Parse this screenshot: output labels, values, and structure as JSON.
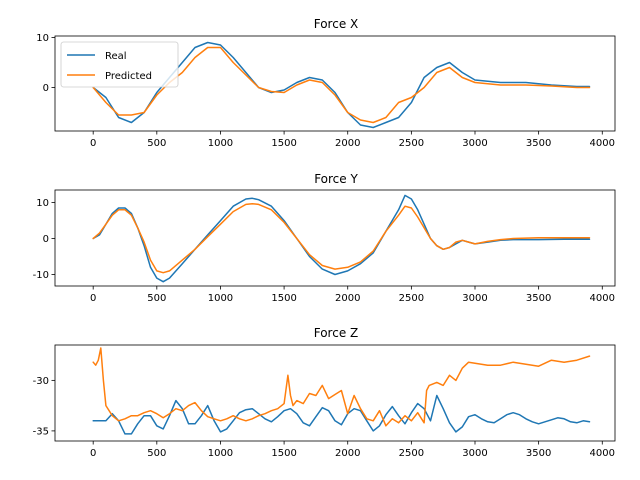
{
  "colors": {
    "real": "#1f77b4",
    "predicted": "#ff7f0e"
  },
  "chart_data": [
    {
      "type": "line",
      "title": "Force X",
      "xlim": [
        -300,
        4100
      ],
      "ylim": [
        -8.7,
        10.3
      ],
      "xticks": [
        0,
        500,
        1000,
        1500,
        2000,
        2500,
        3000,
        3500,
        4000
      ],
      "yticks": [
        -10,
        0,
        10
      ],
      "yticks_shown": [
        0,
        10
      ],
      "legend": {
        "placement": "upper-left",
        "entries": [
          "Real",
          "Predicted"
        ]
      },
      "series": [
        {
          "name": "Real",
          "x": [
            0,
            100,
            200,
            300,
            400,
            500,
            600,
            700,
            800,
            900,
            1000,
            1100,
            1200,
            1300,
            1400,
            1500,
            1600,
            1700,
            1800,
            1900,
            2000,
            2100,
            2200,
            2300,
            2400,
            2500,
            2600,
            2700,
            2800,
            2900,
            3000,
            3200,
            3400,
            3600,
            3800,
            3900
          ],
          "y": [
            0,
            -2,
            -6,
            -7,
            -5,
            -1,
            2,
            5,
            8,
            9,
            8.5,
            6,
            3,
            0,
            -1,
            -0.5,
            1,
            2,
            1.5,
            -1,
            -5,
            -7.5,
            -8,
            -7,
            -6,
            -3,
            2,
            4,
            5,
            3,
            1.5,
            1,
            1,
            0.5,
            0.2,
            0.2
          ]
        },
        {
          "name": "Predicted",
          "x": [
            0,
            100,
            200,
            300,
            400,
            500,
            600,
            700,
            800,
            900,
            1000,
            1100,
            1200,
            1300,
            1400,
            1500,
            1600,
            1700,
            1800,
            1900,
            2000,
            2100,
            2200,
            2300,
            2400,
            2500,
            2600,
            2700,
            2800,
            2900,
            3000,
            3200,
            3400,
            3600,
            3800,
            3900
          ],
          "y": [
            0,
            -3,
            -5.5,
            -5.5,
            -5,
            -1.5,
            1,
            3,
            6,
            8,
            8,
            5,
            2.5,
            0,
            -0.8,
            -1,
            0.5,
            1.5,
            1,
            -1.5,
            -5,
            -6.5,
            -7,
            -6,
            -3,
            -2,
            0,
            3,
            4,
            2,
            1,
            0.5,
            0.5,
            0.3,
            0,
            0
          ]
        }
      ]
    },
    {
      "type": "line",
      "title": "Force Y",
      "xlim": [
        -300,
        4100
      ],
      "ylim": [
        -13.2,
        13.5
      ],
      "xticks": [
        0,
        500,
        1000,
        1500,
        2000,
        2500,
        3000,
        3500,
        4000
      ],
      "yticks": [
        -10,
        0,
        10
      ],
      "series": [
        {
          "name": "Real",
          "x": [
            0,
            50,
            100,
            150,
            200,
            250,
            300,
            350,
            400,
            450,
            500,
            550,
            600,
            700,
            800,
            900,
            1000,
            1100,
            1200,
            1250,
            1300,
            1400,
            1500,
            1600,
            1700,
            1800,
            1900,
            2000,
            2100,
            2200,
            2300,
            2400,
            2450,
            2500,
            2550,
            2600,
            2650,
            2700,
            2750,
            2800,
            2850,
            2900,
            2950,
            3000,
            3100,
            3200,
            3300,
            3500,
            3700,
            3900
          ],
          "y": [
            0,
            1,
            4,
            7,
            8.5,
            8.5,
            7,
            3,
            -2,
            -8,
            -11,
            -12,
            -11,
            -7,
            -3,
            1,
            5,
            9,
            11,
            11.2,
            10.8,
            9,
            5,
            0,
            -5,
            -8.5,
            -10,
            -9,
            -7,
            -4,
            2,
            8,
            12,
            11,
            8,
            4,
            0,
            -2,
            -3,
            -2.5,
            -1.5,
            -0.5,
            -1,
            -1.5,
            -1,
            -0.5,
            -0.3,
            -0.3,
            -0.2,
            -0.2
          ]
        },
        {
          "name": "Predicted",
          "x": [
            0,
            50,
            100,
            150,
            200,
            250,
            300,
            350,
            400,
            450,
            500,
            550,
            600,
            700,
            800,
            900,
            1000,
            1100,
            1200,
            1250,
            1300,
            1400,
            1500,
            1600,
            1700,
            1800,
            1900,
            2000,
            2100,
            2200,
            2300,
            2400,
            2450,
            2500,
            2550,
            2600,
            2650,
            2700,
            2750,
            2800,
            2850,
            2900,
            2950,
            3000,
            3100,
            3200,
            3300,
            3500,
            3700,
            3900
          ],
          "y": [
            0,
            1.5,
            4,
            6.5,
            8,
            8,
            6.5,
            3,
            -1,
            -6,
            -9,
            -9.5,
            -9,
            -6,
            -3,
            0.5,
            4,
            7.5,
            9.5,
            9.7,
            9.5,
            8,
            4.5,
            0,
            -4.5,
            -7.5,
            -8.5,
            -8,
            -6.5,
            -3.5,
            2,
            6.5,
            9,
            8.5,
            6,
            3,
            0,
            -2,
            -3,
            -2.5,
            -1,
            -0.5,
            -1,
            -1.5,
            -0.8,
            -0.3,
            0,
            0.2,
            0.2,
            0.2
          ]
        }
      ]
    },
    {
      "type": "line",
      "title": "Force Z",
      "xlim": [
        -300,
        4100
      ],
      "ylim": [
        -36,
        -26.5
      ],
      "xticks": [
        0,
        500,
        1000,
        1500,
        2000,
        2500,
        3000,
        3500,
        4000
      ],
      "yticks": [
        -35,
        -30
      ],
      "series": [
        {
          "name": "Real",
          "x": [
            0,
            50,
            100,
            150,
            200,
            250,
            300,
            350,
            400,
            450,
            500,
            550,
            600,
            650,
            700,
            750,
            800,
            850,
            900,
            950,
            1000,
            1050,
            1100,
            1150,
            1200,
            1250,
            1300,
            1350,
            1400,
            1450,
            1500,
            1550,
            1600,
            1650,
            1700,
            1750,
            1800,
            1850,
            1900,
            1950,
            2000,
            2050,
            2100,
            2150,
            2200,
            2250,
            2300,
            2350,
            2400,
            2450,
            2500,
            2550,
            2600,
            2650,
            2700,
            2750,
            2800,
            2850,
            2900,
            2950,
            3000,
            3050,
            3100,
            3150,
            3200,
            3250,
            3300,
            3350,
            3400,
            3450,
            3500,
            3550,
            3600,
            3650,
            3700,
            3750,
            3800,
            3850,
            3900
          ],
          "y": [
            -34,
            -34,
            -34,
            -33.3,
            -34,
            -35.3,
            -35.3,
            -34.3,
            -33.5,
            -33.5,
            -34.5,
            -34.8,
            -33.5,
            -32,
            -32.8,
            -34.3,
            -34.3,
            -33.5,
            -32.5,
            -34,
            -35.1,
            -34.8,
            -34,
            -33.2,
            -32.9,
            -32.8,
            -33.3,
            -33.8,
            -34.1,
            -33.6,
            -33,
            -32.8,
            -33.3,
            -34.2,
            -34.5,
            -33.6,
            -32.7,
            -33,
            -34,
            -34.4,
            -33.3,
            -32.8,
            -33,
            -34,
            -35,
            -34.5,
            -33.4,
            -32.6,
            -33.5,
            -34.3,
            -33.2,
            -32.3,
            -32.8,
            -34,
            -31.5,
            -32.8,
            -34.2,
            -35.1,
            -34.6,
            -33.6,
            -33.4,
            -33.8,
            -34.1,
            -34.2,
            -33.8,
            -33.4,
            -33.2,
            -33.4,
            -33.8,
            -34.1,
            -34.3,
            -34.1,
            -33.9,
            -33.7,
            -33.8,
            -34.1,
            -34.2,
            -34,
            -34.1
          ]
        },
        {
          "name": "Predicted",
          "x": [
            0,
            20,
            40,
            60,
            80,
            100,
            150,
            200,
            250,
            300,
            350,
            400,
            450,
            500,
            550,
            600,
            650,
            700,
            750,
            800,
            850,
            900,
            950,
            1000,
            1050,
            1100,
            1150,
            1200,
            1250,
            1300,
            1350,
            1400,
            1450,
            1500,
            1530,
            1550,
            1570,
            1600,
            1650,
            1700,
            1750,
            1800,
            1850,
            1900,
            1950,
            2000,
            2050,
            2100,
            2150,
            2200,
            2250,
            2300,
            2350,
            2400,
            2450,
            2500,
            2550,
            2600,
            2620,
            2640,
            2700,
            2750,
            2800,
            2850,
            2900,
            2950,
            3000,
            3100,
            3200,
            3300,
            3400,
            3500,
            3600,
            3700,
            3800,
            3900
          ],
          "y": [
            -28.2,
            -28.5,
            -28,
            -26.8,
            -30,
            -32.5,
            -33.5,
            -34,
            -33.8,
            -33.5,
            -33.5,
            -33.2,
            -33,
            -33.3,
            -33.7,
            -33.3,
            -32.8,
            -33,
            -32.5,
            -32.2,
            -33,
            -33.6,
            -33.8,
            -34,
            -33.8,
            -33.5,
            -33.8,
            -34,
            -33.8,
            -33.5,
            -33.3,
            -33,
            -32.8,
            -32.3,
            -29.5,
            -31.5,
            -32.5,
            -32,
            -32.3,
            -31.3,
            -31.5,
            -30.5,
            -31.8,
            -31.4,
            -31,
            -33.3,
            -31.5,
            -32.8,
            -33.8,
            -34,
            -33,
            -34.5,
            -33.8,
            -34.2,
            -33.5,
            -34,
            -33.2,
            -34.2,
            -31,
            -30.5,
            -30.2,
            -30.5,
            -29.5,
            -30,
            -28.8,
            -28.2,
            -28.3,
            -28.5,
            -28.5,
            -28.2,
            -28.4,
            -28.6,
            -28.0,
            -28.2,
            -28.0,
            -27.6
          ]
        }
      ]
    }
  ]
}
